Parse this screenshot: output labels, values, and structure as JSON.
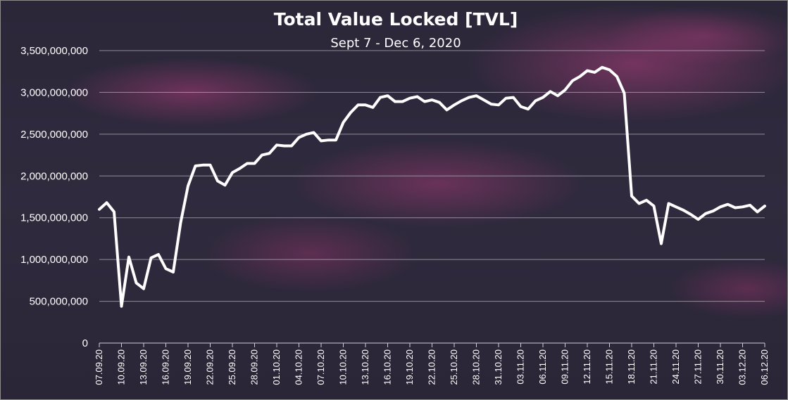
{
  "chart_data": {
    "type": "line",
    "title": "Total Value Locked [TVL]",
    "subtitle": "Sept 7 - Dec 6, 2020",
    "xlabel": "",
    "ylabel": "",
    "ylim": [
      0,
      3500000000
    ],
    "yticks": [
      0,
      500000000,
      1000000000,
      1500000000,
      2000000000,
      2500000000,
      3000000000,
      3500000000
    ],
    "ytick_labels": [
      "0",
      "500,000,000",
      "1,000,000,000",
      "1,500,000,000",
      "2,000,000,000",
      "2,500,000,000",
      "3,000,000,000",
      "3,500,000,000"
    ],
    "grid": true,
    "legend": "none",
    "x": [
      "07.09.20",
      "08.09.20",
      "09.09.20",
      "10.09.20",
      "11.09.20",
      "12.09.20",
      "13.09.20",
      "14.09.20",
      "15.09.20",
      "16.09.20",
      "17.09.20",
      "18.09.20",
      "19.09.20",
      "20.09.20",
      "21.09.20",
      "22.09.20",
      "23.09.20",
      "24.09.20",
      "25.09.20",
      "26.09.20",
      "27.09.20",
      "28.09.20",
      "29.09.20",
      "30.09.20",
      "01.10.20",
      "02.10.20",
      "03.10.20",
      "04.10.20",
      "05.10.20",
      "06.10.20",
      "07.10.20",
      "08.10.20",
      "09.10.20",
      "10.10.20",
      "11.10.20",
      "12.10.20",
      "13.10.20",
      "14.10.20",
      "15.10.20",
      "16.10.20",
      "17.10.20",
      "18.10.20",
      "19.10.20",
      "20.10.20",
      "21.10.20",
      "22.10.20",
      "23.10.20",
      "24.10.20",
      "25.10.20",
      "26.10.20",
      "27.10.20",
      "28.10.20",
      "29.10.20",
      "30.10.20",
      "31.10.20",
      "01.11.20",
      "02.11.20",
      "03.11.20",
      "04.11.20",
      "05.11.20",
      "06.11.20",
      "07.11.20",
      "08.11.20",
      "09.11.20",
      "10.11.20",
      "11.11.20",
      "12.11.20",
      "13.11.20",
      "14.11.20",
      "15.11.20",
      "16.11.20",
      "17.11.20",
      "18.11.20",
      "19.11.20",
      "20.11.20",
      "21.11.20",
      "22.11.20",
      "23.11.20",
      "24.11.20",
      "25.11.20",
      "26.11.20",
      "27.11.20",
      "28.11.20",
      "29.11.20",
      "30.11.20",
      "01.12.20",
      "02.12.20",
      "03.12.20",
      "04.12.20",
      "05.12.20",
      "06.12.20"
    ],
    "x_tick_labels": [
      "07.09.20",
      "10.09.20",
      "13.09.20",
      "16.09.20",
      "19.09.20",
      "22.09.20",
      "25.09.20",
      "28.09.20",
      "01.10.20",
      "04.10.20",
      "07.10.20",
      "10.10.20",
      "13.10.20",
      "16.10.20",
      "19.10.20",
      "22.10.20",
      "25.10.20",
      "28.10.20",
      "31.10.20",
      "03.11.20",
      "06.11.20",
      "09.11.20",
      "12.11.20",
      "15.11.20",
      "18.11.20",
      "21.11.20",
      "24.11.20",
      "27.11.20",
      "30.11.20",
      "03.12.20",
      "06.12.20"
    ],
    "series": [
      {
        "name": "",
        "color": "#ffffff",
        "values": [
          1600000000,
          1680000000,
          1570000000,
          440000000,
          1030000000,
          720000000,
          650000000,
          1020000000,
          1060000000,
          890000000,
          850000000,
          1440000000,
          1880000000,
          2120000000,
          2130000000,
          2130000000,
          1940000000,
          1890000000,
          2040000000,
          2090000000,
          2150000000,
          2150000000,
          2250000000,
          2270000000,
          2370000000,
          2360000000,
          2360000000,
          2460000000,
          2500000000,
          2520000000,
          2420000000,
          2430000000,
          2430000000,
          2640000000,
          2760000000,
          2850000000,
          2850000000,
          2820000000,
          2940000000,
          2960000000,
          2890000000,
          2890000000,
          2930000000,
          2950000000,
          2890000000,
          2910000000,
          2880000000,
          2790000000,
          2850000000,
          2900000000,
          2940000000,
          2960000000,
          2910000000,
          2860000000,
          2850000000,
          2930000000,
          2940000000,
          2830000000,
          2800000000,
          2900000000,
          2940000000,
          3010000000,
          2960000000,
          3030000000,
          3140000000,
          3190000000,
          3260000000,
          3240000000,
          3300000000,
          3270000000,
          3190000000,
          2990000000,
          1760000000,
          1670000000,
          1710000000,
          1640000000,
          1190000000,
          1670000000,
          1630000000,
          1590000000,
          1540000000,
          1480000000,
          1550000000,
          1580000000,
          1630000000,
          1660000000,
          1620000000,
          1630000000,
          1650000000,
          1570000000,
          1640000000
        ]
      }
    ]
  }
}
